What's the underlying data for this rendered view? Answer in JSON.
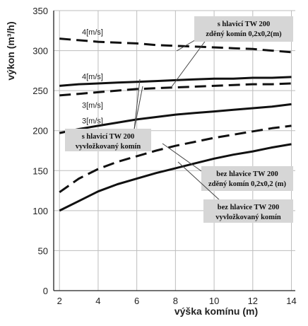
{
  "chart_data": {
    "type": "line",
    "title": "",
    "xlabel": "výška komínu (m)",
    "ylabel": "výkon (m³/h)",
    "xlim": [
      1.7,
      14.2
    ],
    "ylim": [
      0,
      350
    ],
    "xticks": [
      "2",
      "4",
      "6",
      "8",
      "10",
      "12",
      "14"
    ],
    "yticks": [
      "0",
      "50",
      "100",
      "150",
      "200",
      "250",
      "300",
      "350"
    ],
    "grid": true,
    "series": [
      {
        "label": "4[m/s]",
        "style": "dashed",
        "x": [
          2,
          3,
          4,
          5,
          6,
          7,
          8,
          9,
          10,
          11,
          12,
          13,
          14
        ],
        "values": [
          315,
          313,
          311,
          310,
          309,
          307,
          306,
          305,
          304,
          303,
          302,
          300,
          298
        ]
      },
      {
        "label": "4[m/s]",
        "style": "solid",
        "x": [
          2,
          3,
          4,
          5,
          6,
          7,
          8,
          9,
          10,
          11,
          12,
          13,
          14
        ],
        "values": [
          256,
          258,
          259,
          260,
          261,
          262,
          263,
          264,
          265,
          265,
          266,
          266,
          267
        ]
      },
      {
        "label": "3[m/s]",
        "style": "dashed",
        "x": [
          2,
          3,
          4,
          5,
          6,
          7,
          8,
          9,
          10,
          11,
          12,
          13,
          14
        ],
        "values": [
          244,
          246,
          248,
          250,
          252,
          253,
          254,
          255,
          256,
          257,
          258,
          258,
          259
        ]
      },
      {
        "label": "3[m/s]",
        "style": "solid",
        "x": [
          2,
          3,
          4,
          5,
          6,
          7,
          8,
          9,
          10,
          11,
          12,
          13,
          14
        ],
        "values": [
          197,
          202,
          206,
          210,
          214,
          217,
          220,
          222,
          224,
          226,
          228,
          230,
          233
        ]
      },
      {
        "label": "",
        "style": "dashed",
        "x": [
          2,
          3,
          4,
          5,
          6,
          7,
          8,
          9,
          10,
          11,
          12,
          13,
          14
        ],
        "values": [
          123,
          140,
          152,
          161,
          168,
          175,
          181,
          186,
          191,
          195,
          199,
          203,
          206
        ]
      },
      {
        "label": "",
        "style": "solid",
        "x": [
          2,
          3,
          4,
          5,
          6,
          7,
          8,
          9,
          10,
          11,
          12,
          13,
          14
        ],
        "values": [
          100,
          112,
          124,
          133,
          140,
          147,
          153,
          159,
          165,
          170,
          174,
          179,
          183
        ]
      }
    ],
    "annotations": [
      {
        "lines": [
          "s hlavicí TW 200",
          "zděný komín 0,2x0,2(m)"
        ]
      },
      {
        "lines": [
          "s hlavicí TW 200",
          "vyvložkovaný komín"
        ]
      },
      {
        "lines": [
          "bez hlavice TW 200",
          "zděný komín 0,2x0,2 (m)"
        ]
      },
      {
        "lines": [
          "bez hlavice TW 200",
          "vyvložkovaný komín"
        ]
      }
    ]
  }
}
